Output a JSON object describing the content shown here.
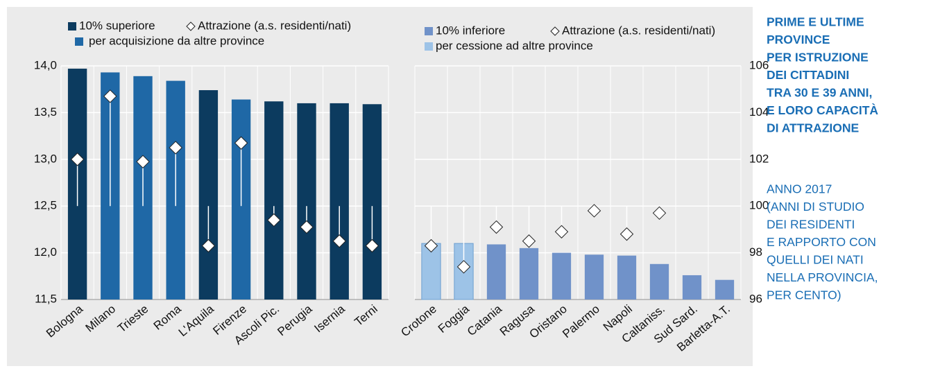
{
  "chart_data": [
    {
      "type": "bar",
      "categories": [
        "Bologna",
        "Milano",
        "Trieste",
        "Roma",
        "L'Aquila",
        "Firenze",
        "Ascoli Pic.",
        "Perugia",
        "Isernia",
        "Terni"
      ],
      "series": [
        {
          "name": "10% superiore",
          "color": "#0c3b5f",
          "values": [
            13.97,
            null,
            null,
            null,
            13.74,
            null,
            13.62,
            13.6,
            13.6,
            13.59
          ]
        },
        {
          "name": "per acquisizione da altre province",
          "color": "#1f68a6",
          "values": [
            null,
            13.93,
            13.89,
            13.84,
            null,
            13.64,
            null,
            null,
            null,
            null
          ]
        },
        {
          "name": "Attrazione (a.s. residenti/nati)",
          "axis": "y2",
          "color": "#ffffff",
          "values": [
            102.0,
            104.7,
            101.9,
            102.5,
            98.3,
            102.7,
            99.4,
            99.1,
            98.5,
            98.3
          ]
        }
      ],
      "ylim": [
        11.5,
        14.0
      ],
      "yticks": [
        {
          "value": 11.5,
          "label": "11,5"
        },
        {
          "value": 12.0,
          "label": "12,0"
        },
        {
          "value": 12.5,
          "label": "12,5"
        },
        {
          "value": 13.0,
          "label": "13,0"
        },
        {
          "value": 13.5,
          "label": "13,5"
        },
        {
          "value": 14.0,
          "label": "14,0"
        }
      ],
      "y2lim": [
        96,
        106
      ],
      "y2_baseline": 100,
      "grid": true
    },
    {
      "type": "bar",
      "categories": [
        "Crotone",
        "Foggia",
        "Catania",
        "Ragusa",
        "Oristano",
        "Palermo",
        "Napoli",
        "Caltaniss.",
        "Sud Sard.",
        "Barletta-A.T."
      ],
      "series": [
        {
          "name": "10% inferiore",
          "color": "#7092c9",
          "values": [
            null,
            null,
            12.09,
            12.05,
            12.0,
            11.98,
            11.97,
            11.88,
            11.76,
            11.71
          ]
        },
        {
          "name": "per cessione ad altre province",
          "color": "#9dc3e7",
          "values": [
            12.1,
            12.1,
            null,
            null,
            null,
            null,
            null,
            null,
            null,
            null
          ]
        },
        {
          "name": "Attrazione (a.s. residenti/nati)",
          "axis": "y2",
          "color": "#ffffff",
          "values": [
            98.3,
            97.4,
            99.1,
            98.5,
            98.9,
            99.8,
            98.8,
            99.7,
            null,
            null
          ]
        }
      ],
      "ylim": [
        11.5,
        14.0
      ],
      "y2lim": [
        96,
        106
      ],
      "y2ticks": [
        96,
        98,
        100,
        102,
        104,
        106
      ],
      "y2_baseline": 100,
      "grid": true
    }
  ],
  "sidebar": {
    "title": [
      "PRIME E ULTIME",
      "PROVINCE",
      "PER ISTRUZIONE",
      "DEI CITTADINI",
      "TRA 30 E 39 ANNI,",
      "E LORO CAPACITÀ",
      "DI ATTRAZIONE"
    ],
    "subtitle": [
      "ANNO 2017",
      "(ANNI DI STUDIO",
      "DEI RESIDENTI",
      "E RAPPORTO CON",
      "QUELLI DEI NATI",
      "NELLA PROVINCIA,",
      "PER CENTO)"
    ]
  }
}
